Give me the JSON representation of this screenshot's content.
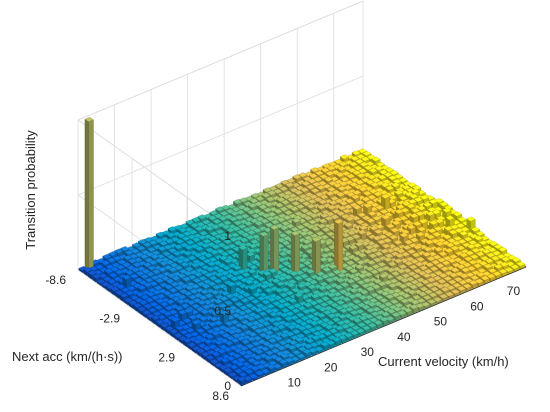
{
  "chart_data": {
    "type": "bar3d",
    "title": "",
    "xlabel": "Current velocity (km/h)",
    "ylabel": "Next acc (km/(h·s))",
    "zlabel": "Transition probability",
    "x_ticks": [
      "10",
      "20",
      "30",
      "40",
      "50",
      "60",
      "70"
    ],
    "y_ticks": [
      "-8.6",
      "-2.9",
      "2.9",
      "8.6"
    ],
    "z_ticks": [
      "0",
      "0.5",
      "1"
    ],
    "xlim": [
      0,
      78
    ],
    "ylim": [
      -8.6,
      8.6
    ],
    "zlim": [
      0,
      1
    ],
    "colormap": "parula",
    "colormap_stops": [
      "#352a87",
      "#0363e1",
      "#1485d4",
      "#06a7c6",
      "#38b99e",
      "#92bf73",
      "#d9ba56",
      "#fcce2e",
      "#f9fb0e"
    ],
    "grid": true,
    "notable_bars": [
      {
        "x": 2,
        "y": -8.6,
        "z": 0.99
      },
      {
        "x": 29,
        "y": -2.2,
        "z": 0.15
      },
      {
        "x": 31,
        "y": -1.4,
        "z": 0.25
      },
      {
        "x": 33,
        "y": -0.8,
        "z": 0.3
      },
      {
        "x": 36,
        "y": 0.2,
        "z": 0.27
      },
      {
        "x": 39,
        "y": 1.0,
        "z": 0.24
      },
      {
        "x": 44,
        "y": 1.9,
        "z": 0.33
      }
    ],
    "typical_probability": "0.01–0.1"
  }
}
